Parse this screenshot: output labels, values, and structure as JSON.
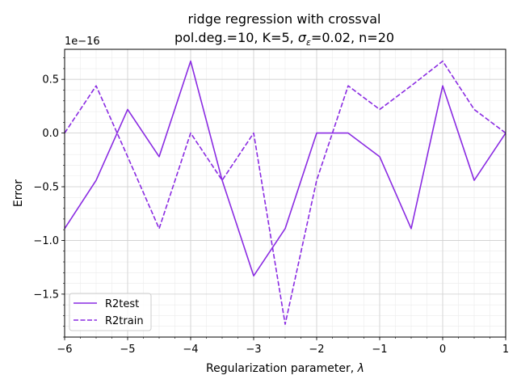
{
  "chart_data": {
    "type": "line",
    "title_line1": "ridge regression with crossval",
    "title_line2_prefix": "pol.deg.=10,  K=5,  ",
    "title_sigma": "σ",
    "title_sigma_sub": "ε",
    "title_line2_suffix": "=0.02,  n=20",
    "xlabel_prefix": "Regularization parameter, ",
    "xlabel_symbol": "λ",
    "ylabel": "Error",
    "offset_text": "1e−16",
    "xlim": [
      -6,
      1
    ],
    "ylim": [
      -1.9,
      0.78
    ],
    "grid": true,
    "legend_position": "lower-left",
    "x_ticks": [
      {
        "value": -6,
        "label": "−6"
      },
      {
        "value": -5,
        "label": "−5"
      },
      {
        "value": -4,
        "label": "−4"
      },
      {
        "value": -3,
        "label": "−3"
      },
      {
        "value": -2,
        "label": "−2"
      },
      {
        "value": -1,
        "label": "−1"
      },
      {
        "value": 0,
        "label": "0"
      },
      {
        "value": 1,
        "label": "1"
      }
    ],
    "y_ticks": [
      {
        "value": 0.5,
        "label": "0.5"
      },
      {
        "value": 0.0,
        "label": "0.0"
      },
      {
        "value": -0.5,
        "label": "−0.5"
      },
      {
        "value": -1.0,
        "label": "−1.0"
      },
      {
        "value": -1.5,
        "label": "−1.5"
      }
    ],
    "x": [
      -6,
      -5.5,
      -5,
      -4.5,
      -4,
      -3.5,
      -3,
      -2.5,
      -2,
      -1.5,
      -1,
      -0.5,
      0,
      0.5,
      1
    ],
    "series": [
      {
        "name": "R2test",
        "color": "#8a2be2",
        "dash": "solid",
        "values": [
          -0.89,
          -0.44,
          0.22,
          -0.22,
          0.67,
          -0.44,
          -1.33,
          -0.89,
          0.0,
          0.0,
          -0.22,
          -0.89,
          0.44,
          -0.44,
          0.0
        ]
      },
      {
        "name": "R2train",
        "color": "#8a2be2",
        "dash": "dashed",
        "values": [
          0.0,
          0.44,
          -0.22,
          -0.89,
          0.0,
          -0.44,
          0.0,
          -1.78,
          -0.44,
          0.44,
          0.22,
          0.44,
          0.67,
          0.22,
          0.0
        ]
      }
    ]
  }
}
